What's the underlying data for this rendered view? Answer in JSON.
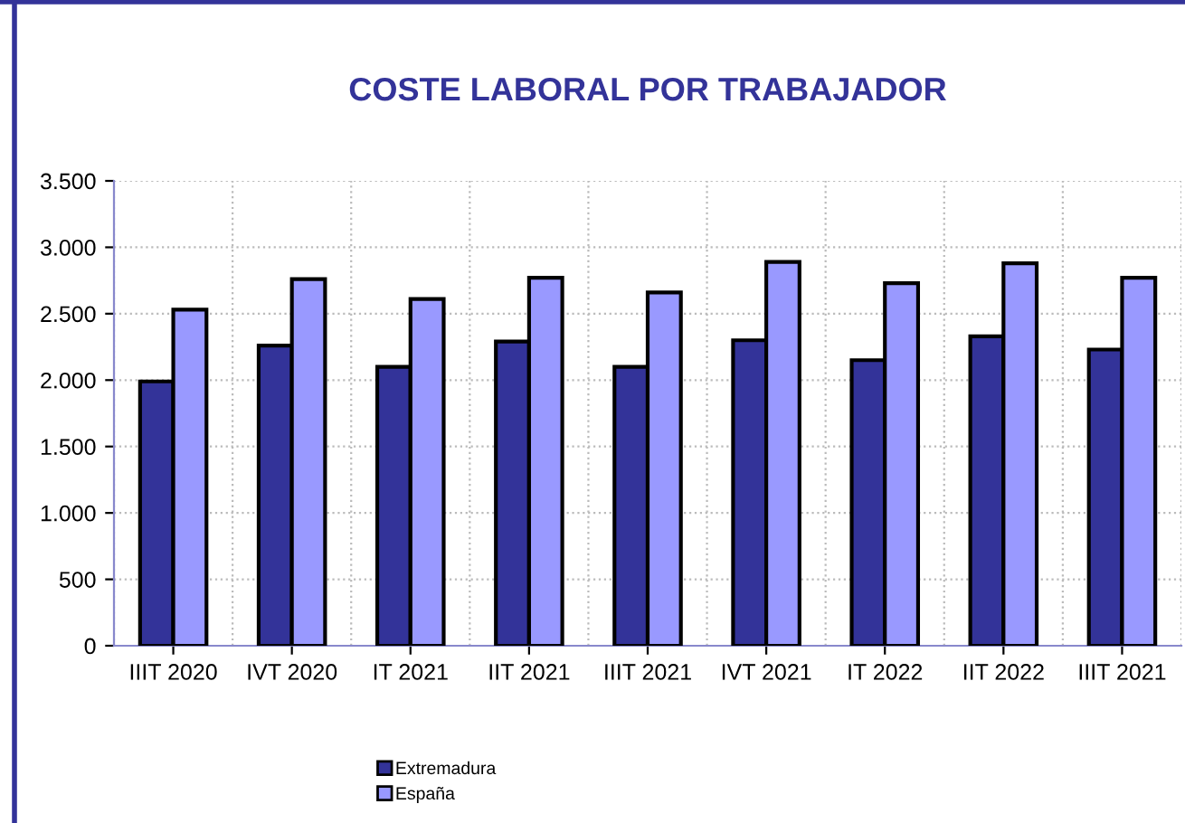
{
  "chart_data": {
    "type": "bar",
    "title": "COSTE LABORAL POR TRABAJADOR",
    "categories": [
      "IIIT 2020",
      "IVT 2020",
      "IT 2021",
      "IIT 2021",
      "IIIT 2021",
      "IVT 2021",
      "IT 2022",
      "IIT 2022",
      "IIIT 2021"
    ],
    "series": [
      {
        "name": "Extremadura",
        "color": "#333399",
        "values": [
          1990,
          2260,
          2100,
          2290,
          2100,
          2300,
          2150,
          2330,
          2230
        ]
      },
      {
        "name": "España",
        "color": "#9999ff",
        "values": [
          2530,
          2760,
          2610,
          2770,
          2660,
          2890,
          2730,
          2880,
          2770
        ]
      }
    ],
    "ylim": [
      0,
      3500
    ],
    "yticks": [
      {
        "value": 0,
        "label": "0"
      },
      {
        "value": 500,
        "label": "500"
      },
      {
        "value": 1000,
        "label": "1.000"
      },
      {
        "value": 1500,
        "label": "1.500"
      },
      {
        "value": 2000,
        "label": "2.000"
      },
      {
        "value": 2500,
        "label": "2.500"
      },
      {
        "value": 3000,
        "label": "3.000"
      },
      {
        "value": 3500,
        "label": "3.500"
      }
    ],
    "grid": true,
    "legend": "bottom"
  }
}
